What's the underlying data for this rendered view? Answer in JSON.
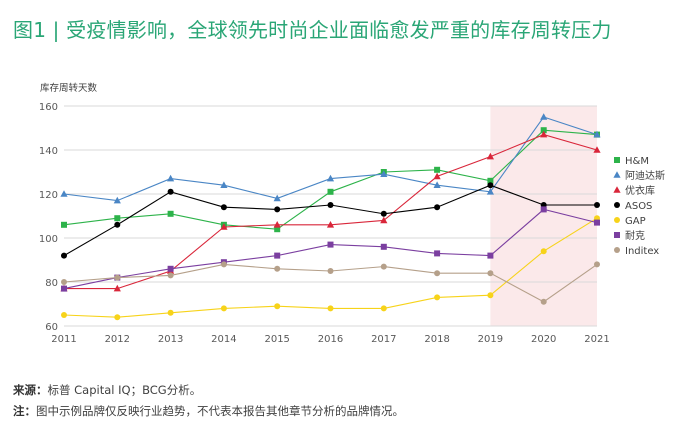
{
  "title": "图1 | 受疫情影响，全球领先时尚企业面临愈发严重的库存周转压力",
  "source_label": "来源：",
  "source_text": "标普 Capital IQ；BCG分析。",
  "note_label": "注：",
  "note_text": "图中示例品牌仅反映行业趋势，不代表本报告其他章节分析的品牌情况。",
  "colors": {
    "title": "#2aa676",
    "highlight": "#fbe9ea",
    "grid": "#d9d9d9"
  },
  "chart_data": {
    "type": "line",
    "ylabel": "库存周转天数",
    "ylim": [
      60,
      160
    ],
    "yticks": [
      60,
      80,
      100,
      120,
      140,
      160
    ],
    "x": [
      "2011",
      "2012",
      "2013",
      "2014",
      "2015",
      "2016",
      "2017",
      "2018",
      "2019",
      "2020",
      "2021"
    ],
    "highlight_range": [
      "2019",
      "2021"
    ],
    "legend_position": "right",
    "series": [
      {
        "name": "H&M",
        "color": "#2db34a",
        "marker": "square",
        "values": [
          106,
          109,
          111,
          106,
          104,
          121,
          130,
          131,
          126,
          149,
          147
        ]
      },
      {
        "name": "阿迪达斯",
        "color": "#4a86c5",
        "marker": "triangle",
        "values": [
          120,
          117,
          127,
          124,
          118,
          127,
          129,
          124,
          121,
          155,
          147
        ]
      },
      {
        "name": "优衣库",
        "color": "#d9263a",
        "marker": "triangle",
        "values": [
          77,
          77,
          85,
          105,
          106,
          106,
          108,
          128,
          137,
          147,
          140
        ]
      },
      {
        "name": "ASOS",
        "color": "#000000",
        "marker": "circle",
        "values": [
          92,
          106,
          121,
          114,
          113,
          115,
          111,
          114,
          124,
          115,
          115
        ]
      },
      {
        "name": "GAP",
        "color": "#f7d31a",
        "marker": "circle",
        "values": [
          65,
          64,
          66,
          68,
          69,
          68,
          68,
          73,
          74,
          94,
          109
        ]
      },
      {
        "name": "耐克",
        "color": "#7b3fa0",
        "marker": "square",
        "values": [
          77,
          82,
          86,
          89,
          92,
          97,
          96,
          93,
          92,
          113,
          107
        ]
      },
      {
        "name": "Inditex",
        "color": "#b5a08a",
        "marker": "circle",
        "values": [
          80,
          82,
          83,
          88,
          86,
          85,
          87,
          84,
          84,
          71,
          88
        ]
      }
    ]
  }
}
